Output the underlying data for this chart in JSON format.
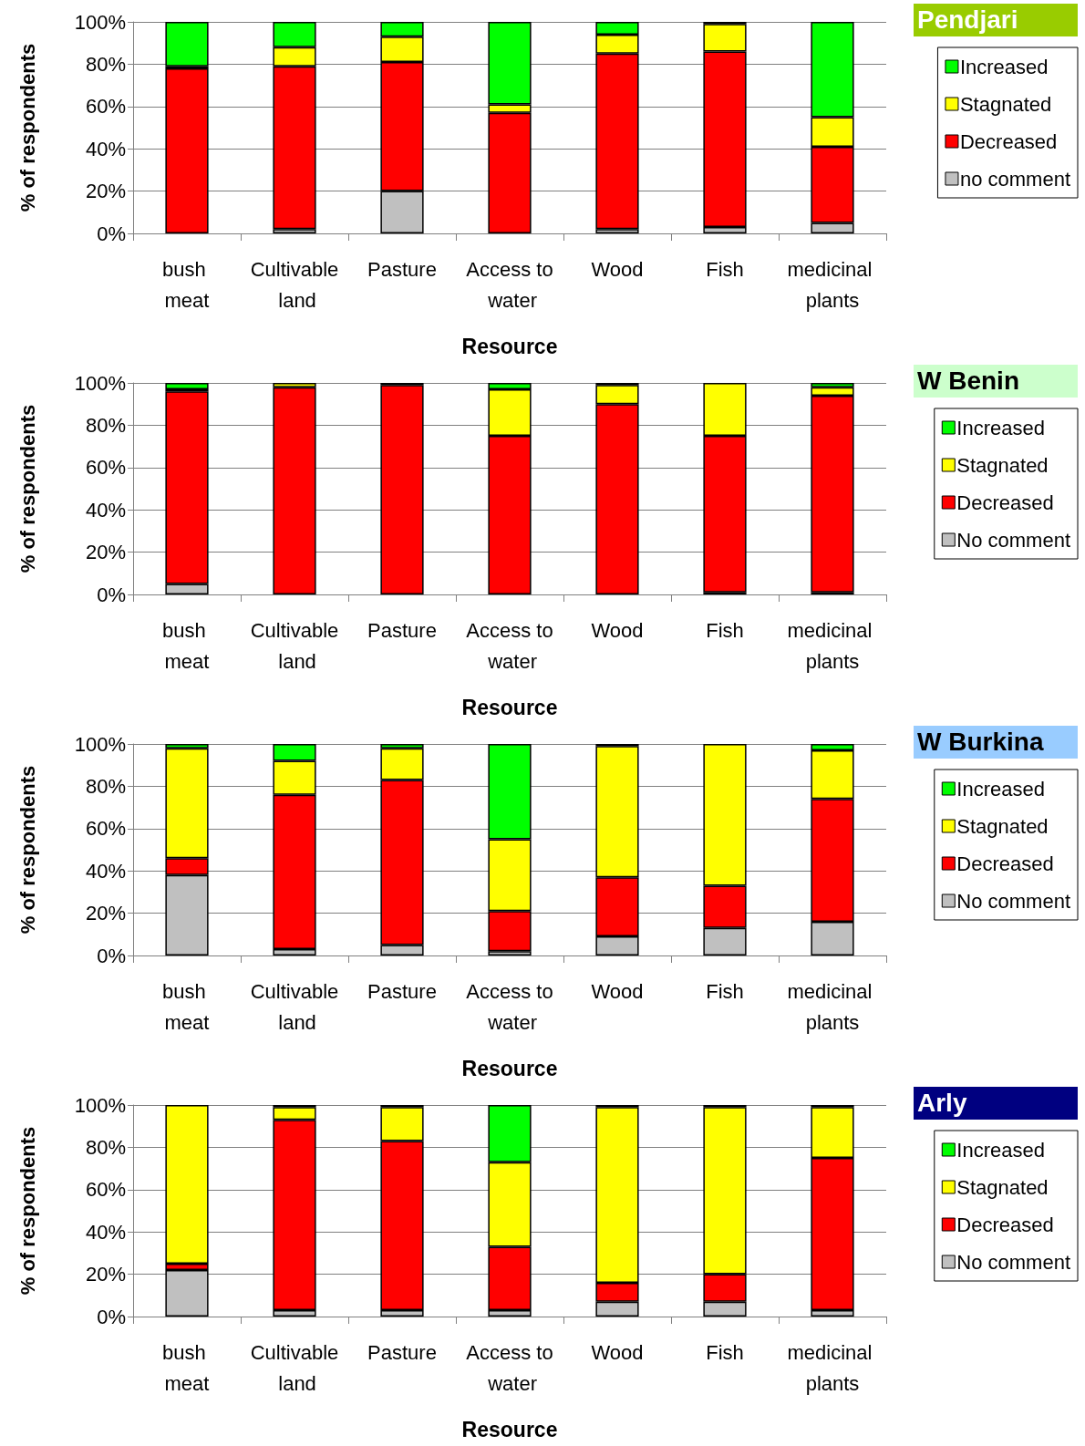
{
  "chart_data": [
    {
      "type": "bar",
      "stacked": true,
      "legend_title": "Pendjari",
      "xlabel": "Resource",
      "ylabel": "% of respondents",
      "categories": [
        "bush meat",
        "Cultivable land",
        "Pasture",
        "Access to water",
        "Wood",
        "Fish",
        "medicinal plants"
      ],
      "ylim": [
        0,
        100
      ],
      "yticks": [
        {
          "value": 0,
          "label": "0%"
        },
        {
          "value": 20,
          "label": "20%"
        },
        {
          "value": 40,
          "label": "40%"
        },
        {
          "value": 60,
          "label": "60%"
        },
        {
          "value": 80,
          "label": "80%"
        },
        {
          "value": 100,
          "label": "100%"
        }
      ],
      "grid": "y",
      "legend": "right",
      "series": [
        {
          "name": "no comment",
          "color": "#c0c0c0",
          "values": [
            0,
            2,
            20,
            0,
            2,
            3,
            5
          ]
        },
        {
          "name": "Decreased",
          "color": "#ff0000",
          "values": [
            78,
            77,
            61,
            57,
            83,
            83,
            36
          ]
        },
        {
          "name": "Stagnated",
          "color": "#ffff00",
          "values": [
            1,
            9,
            12,
            4,
            9,
            13,
            14
          ]
        },
        {
          "name": "Increased",
          "color": "#00ff00",
          "values": [
            21,
            12,
            7,
            39,
            6,
            1,
            45
          ]
        }
      ]
    },
    {
      "type": "bar",
      "stacked": true,
      "legend_title": "W Benin",
      "xlabel": "Resource",
      "ylabel": "% of respondents",
      "categories": [
        "bush meat",
        "Cultivable land",
        "Pasture",
        "Access to water",
        "Wood",
        "Fish",
        "medicinal plants"
      ],
      "ylim": [
        0,
        100
      ],
      "yticks": [
        {
          "value": 0,
          "label": "0%"
        },
        {
          "value": 20,
          "label": "20%"
        },
        {
          "value": 40,
          "label": "40%"
        },
        {
          "value": 60,
          "label": "60%"
        },
        {
          "value": 80,
          "label": "80%"
        },
        {
          "value": 100,
          "label": "100%"
        }
      ],
      "grid": "y",
      "legend": "right",
      "series": [
        {
          "name": "No comment",
          "color": "#c0c0c0",
          "values": [
            5,
            0,
            0,
            0,
            0,
            1,
            1
          ]
        },
        {
          "name": "Decreased",
          "color": "#ff0000",
          "values": [
            91,
            98,
            99,
            75,
            90,
            74,
            93
          ]
        },
        {
          "name": "Stagnated",
          "color": "#ffff00",
          "values": [
            1,
            2,
            0,
            22,
            9,
            25,
            4
          ]
        },
        {
          "name": "Increased",
          "color": "#00ff00",
          "values": [
            3,
            0,
            1,
            3,
            1,
            0,
            2
          ]
        }
      ]
    },
    {
      "type": "bar",
      "stacked": true,
      "legend_title": "W Burkina",
      "xlabel": "Resource",
      "ylabel": "% of respondents",
      "categories": [
        "bush meat",
        "Cultivable land",
        "Pasture",
        "Access to water",
        "Wood",
        "Fish",
        "medicinal plants"
      ],
      "ylim": [
        0,
        100
      ],
      "yticks": [
        {
          "value": 0,
          "label": "0%"
        },
        {
          "value": 20,
          "label": "20%"
        },
        {
          "value": 40,
          "label": "40%"
        },
        {
          "value": 60,
          "label": "60%"
        },
        {
          "value": 80,
          "label": "80%"
        },
        {
          "value": 100,
          "label": "100%"
        }
      ],
      "grid": "y",
      "legend": "right",
      "series": [
        {
          "name": "No comment",
          "color": "#c0c0c0",
          "values": [
            38,
            3,
            5,
            2,
            9,
            13,
            16
          ]
        },
        {
          "name": "Decreased",
          "color": "#ff0000",
          "values": [
            8,
            73,
            78,
            19,
            28,
            20,
            58
          ]
        },
        {
          "name": "Stagnated",
          "color": "#ffff00",
          "values": [
            52,
            16,
            15,
            34,
            62,
            67,
            23
          ]
        },
        {
          "name": "Increased",
          "color": "#00ff00",
          "values": [
            2,
            8,
            2,
            45,
            1,
            0,
            3
          ]
        }
      ]
    },
    {
      "type": "bar",
      "stacked": true,
      "legend_title": "Arly",
      "xlabel": "Resource",
      "ylabel": "% of respondents",
      "categories": [
        "bush meat",
        "Cultivable land",
        "Pasture",
        "Access to water",
        "Wood",
        "Fish",
        "medicinal plants"
      ],
      "ylim": [
        0,
        100
      ],
      "yticks": [
        {
          "value": 0,
          "label": "0%"
        },
        {
          "value": 20,
          "label": "20%"
        },
        {
          "value": 40,
          "label": "40%"
        },
        {
          "value": 60,
          "label": "60%"
        },
        {
          "value": 80,
          "label": "80%"
        },
        {
          "value": 100,
          "label": "100%"
        }
      ],
      "grid": "y",
      "legend": "right",
      "series": [
        {
          "name": "No comment",
          "color": "#c0c0c0",
          "values": [
            22,
            3,
            3,
            3,
            7,
            7,
            3
          ]
        },
        {
          "name": "Decreased",
          "color": "#ff0000",
          "values": [
            3,
            90,
            80,
            30,
            9,
            13,
            72
          ]
        },
        {
          "name": "Stagnated",
          "color": "#ffff00",
          "values": [
            75,
            6,
            16,
            40,
            83,
            79,
            24
          ]
        },
        {
          "name": "Increased",
          "color": "#00ff00",
          "values": [
            0,
            1,
            1,
            27,
            1,
            1,
            1
          ]
        }
      ]
    }
  ]
}
